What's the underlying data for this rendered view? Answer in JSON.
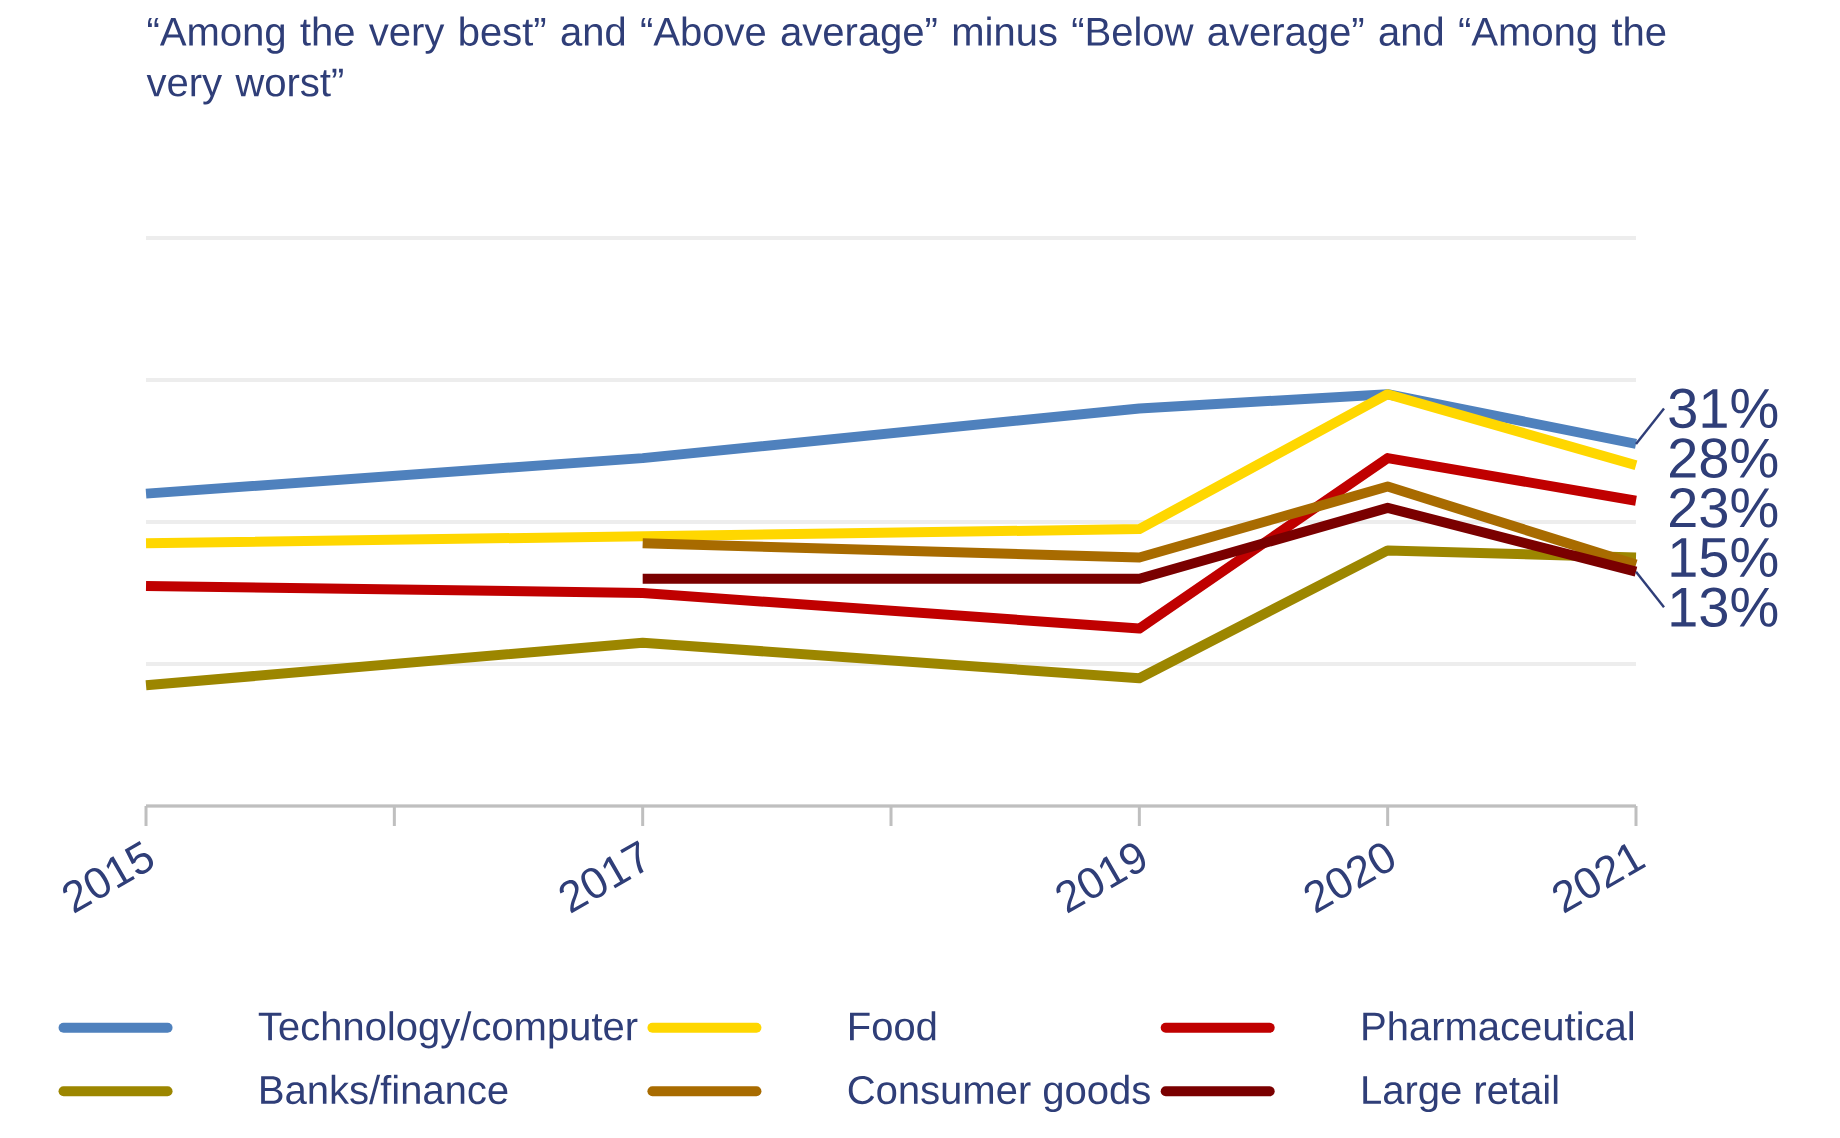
{
  "chart_data": {
    "type": "line",
    "title": "“Among the very best” and “Above average” minus “Below average” and “Among the very worst”",
    "x": [
      2015,
      2017,
      2019,
      2020,
      2021
    ],
    "xlim": [
      2015,
      2021
    ],
    "xticks": [
      2015,
      {
        "value": 2016,
        "label": null
      },
      2017,
      {
        "value": 2018,
        "label": null
      },
      2019,
      2020,
      2021
    ],
    "ylim": [
      -20,
      60
    ],
    "yticks": [
      {
        "value": -20,
        "label": null
      },
      {
        "value": 0,
        "label": null
      },
      {
        "value": 20,
        "label": null
      },
      {
        "value": 40,
        "label": null
      },
      {
        "value": 60,
        "label": null
      }
    ],
    "tick_labels": "x",
    "grid": "y",
    "legend": "bottom",
    "series": [
      {
        "name": "Technology/computer",
        "color": "#4f81bd",
        "values": [
          24,
          29,
          36,
          38,
          31
        ],
        "value_labels": [
          null,
          null,
          null,
          null,
          "31%"
        ]
      },
      {
        "name": "Food",
        "color": "#ffd700",
        "values": [
          17,
          18,
          19,
          38,
          28
        ],
        "value_labels": [
          null,
          null,
          null,
          null,
          "28%"
        ]
      },
      {
        "name": "Pharmaceutical",
        "color": "#c00000",
        "values": [
          11,
          10,
          5,
          29,
          23
        ],
        "value_labels": [
          null,
          null,
          null,
          null,
          "23%"
        ]
      },
      {
        "name": "Banks/finance",
        "color": "#9c8600",
        "values": [
          -3,
          3,
          -2,
          16,
          15
        ],
        "value_labels": [
          null,
          null,
          null,
          null,
          "15%"
        ]
      },
      {
        "name": "Consumer goods",
        "color": "#a86b00",
        "values": [
          null,
          17,
          15,
          25,
          14
        ]
      },
      {
        "name": "Large retail",
        "color": "#7a0000",
        "values": [
          null,
          12,
          12,
          22,
          13
        ],
        "value_labels": [
          null,
          null,
          null,
          null,
          "13%"
        ]
      }
    ]
  }
}
